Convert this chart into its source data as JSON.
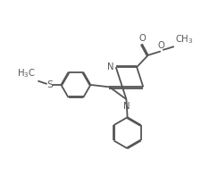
{
  "background_color": "#ffffff",
  "line_color": "#555555",
  "line_width": 1.3,
  "font_size": 7.2,
  "fig_width": 2.44,
  "fig_height": 1.97,
  "dpi": 100,
  "xlim": [
    0,
    10
  ],
  "ylim": [
    0,
    8
  ]
}
